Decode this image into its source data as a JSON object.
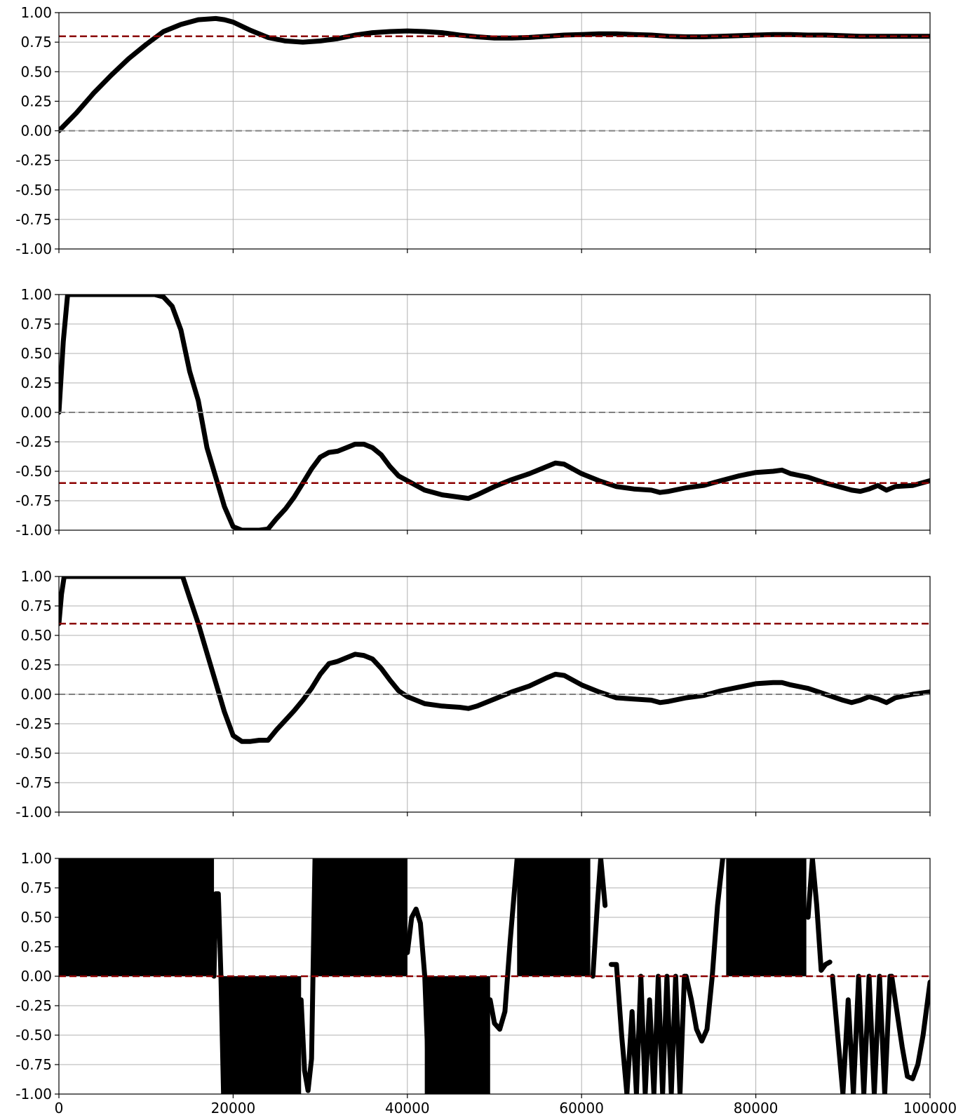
{
  "colors": {
    "series": "#000000",
    "target_line": "#8b0000",
    "zero_line": "#808080",
    "grid": "#b0b0b0"
  },
  "chart_data": [
    {
      "type": "line",
      "xlim": [
        0,
        100000
      ],
      "ylim": [
        -1.0,
        1.0
      ],
      "x_ticks": [
        "0",
        "20000",
        "40000",
        "60000",
        "80000",
        "100000"
      ],
      "x_tick_labels_shown": false,
      "y_ticks": [
        "1.00",
        "0.75",
        "0.50",
        "0.25",
        "0.00",
        "-0.25",
        "-0.50",
        "-0.75",
        "-1.00"
      ],
      "grid": true,
      "hlines": [
        {
          "y": 0.8,
          "style": "dashed",
          "color": "#8b0000"
        },
        {
          "y": 0.0,
          "style": "dashed",
          "color": "#808080"
        }
      ],
      "series": [
        {
          "x": [
            0,
            2000,
            4000,
            6000,
            8000,
            10000,
            12000,
            14000,
            16000,
            18000,
            19000,
            20000,
            22000,
            24000,
            26000,
            28000,
            30000,
            32000,
            34000,
            36000,
            38000,
            40000,
            42000,
            44000,
            46000,
            48000,
            50000,
            52000,
            54000,
            56000,
            58000,
            60000,
            62000,
            64000,
            66000,
            68000,
            70000,
            72000,
            74000,
            76000,
            78000,
            80000,
            82000,
            84000,
            86000,
            88000,
            90000,
            92000,
            94000,
            96000,
            98000,
            100000
          ],
          "y": [
            0.0,
            0.15,
            0.32,
            0.47,
            0.61,
            0.73,
            0.84,
            0.9,
            0.94,
            0.95,
            0.94,
            0.92,
            0.85,
            0.79,
            0.76,
            0.75,
            0.76,
            0.78,
            0.81,
            0.83,
            0.84,
            0.845,
            0.84,
            0.83,
            0.81,
            0.795,
            0.785,
            0.785,
            0.79,
            0.8,
            0.81,
            0.815,
            0.82,
            0.82,
            0.815,
            0.81,
            0.8,
            0.795,
            0.795,
            0.8,
            0.805,
            0.81,
            0.815,
            0.815,
            0.81,
            0.81,
            0.805,
            0.8,
            0.8,
            0.8,
            0.8,
            0.8
          ]
        }
      ]
    },
    {
      "type": "line",
      "xlim": [
        0,
        100000
      ],
      "ylim": [
        -1.0,
        1.0
      ],
      "x_ticks": [
        "0",
        "20000",
        "40000",
        "60000",
        "80000",
        "100000"
      ],
      "x_tick_labels_shown": false,
      "y_ticks": [
        "1.00",
        "0.75",
        "0.50",
        "0.25",
        "0.00",
        "-0.25",
        "-0.50",
        "-0.75",
        "-1.00"
      ],
      "grid": true,
      "hlines": [
        {
          "y": -0.6,
          "style": "dashed",
          "color": "#8b0000"
        },
        {
          "y": 0.0,
          "style": "dashed",
          "color": "#808080"
        }
      ],
      "series": [
        {
          "x": [
            0,
            500,
            1000,
            2000,
            4000,
            8000,
            11000,
            12000,
            13000,
            14000,
            15000,
            16000,
            17000,
            18000,
            19000,
            20000,
            21000,
            22000,
            23000,
            24000,
            25000,
            26000,
            27000,
            28000,
            29000,
            30000,
            31000,
            32000,
            33000,
            34000,
            35000,
            36000,
            37000,
            38000,
            39000,
            40000,
            42000,
            44000,
            46000,
            47000,
            48000,
            50000,
            52000,
            54000,
            56000,
            57000,
            58000,
            60000,
            62000,
            64000,
            66000,
            68000,
            69000,
            70000,
            72000,
            74000,
            76000,
            78000,
            80000,
            82000,
            83000,
            84000,
            86000,
            88000,
            90000,
            91000,
            92000,
            93000,
            94000,
            95000,
            96000,
            98000,
            100000
          ],
          "y": [
            0.0,
            0.6,
            1.0,
            1.0,
            1.0,
            1.0,
            1.0,
            0.98,
            0.9,
            0.7,
            0.35,
            0.1,
            -0.3,
            -0.55,
            -0.8,
            -0.97,
            -1.0,
            -1.0,
            -1.0,
            -0.99,
            -0.9,
            -0.82,
            -0.72,
            -0.6,
            -0.48,
            -0.38,
            -0.34,
            -0.33,
            -0.3,
            -0.27,
            -0.27,
            -0.3,
            -0.36,
            -0.46,
            -0.54,
            -0.58,
            -0.66,
            -0.7,
            -0.72,
            -0.73,
            -0.7,
            -0.63,
            -0.57,
            -0.52,
            -0.46,
            -0.43,
            -0.44,
            -0.52,
            -0.58,
            -0.63,
            -0.65,
            -0.66,
            -0.68,
            -0.67,
            -0.64,
            -0.62,
            -0.58,
            -0.54,
            -0.51,
            -0.5,
            -0.49,
            -0.52,
            -0.55,
            -0.6,
            -0.64,
            -0.66,
            -0.67,
            -0.65,
            -0.62,
            -0.66,
            -0.63,
            -0.62,
            -0.58
          ]
        }
      ]
    },
    {
      "type": "line",
      "xlim": [
        0,
        100000
      ],
      "ylim": [
        -1.0,
        1.0
      ],
      "x_ticks": [
        "0",
        "20000",
        "40000",
        "60000",
        "80000",
        "100000"
      ],
      "x_tick_labels_shown": false,
      "y_ticks": [
        "1.00",
        "0.75",
        "0.50",
        "0.25",
        "0.00",
        "-0.25",
        "-0.50",
        "-0.75",
        "-1.00"
      ],
      "grid": true,
      "hlines": [
        {
          "y": 0.6,
          "style": "dashed",
          "color": "#8b0000"
        },
        {
          "y": 0.0,
          "style": "dashed",
          "color": "#808080"
        }
      ],
      "series": [
        {
          "x": [
            0,
            300,
            600,
            14200,
            15000,
            16000,
            17000,
            18000,
            19000,
            20000,
            21000,
            22000,
            23000,
            24000,
            25000,
            26000,
            27000,
            28000,
            29000,
            30000,
            31000,
            32000,
            33000,
            34000,
            35000,
            36000,
            37000,
            38000,
            39000,
            40000,
            42000,
            44000,
            46000,
            47000,
            48000,
            50000,
            52000,
            54000,
            56000,
            57000,
            58000,
            60000,
            62000,
            64000,
            66000,
            68000,
            69000,
            70000,
            72000,
            74000,
            76000,
            78000,
            80000,
            82000,
            83000,
            84000,
            86000,
            88000,
            90000,
            91000,
            92000,
            93000,
            94000,
            95000,
            96000,
            98000,
            100000
          ],
          "y": [
            0.6,
            0.85,
            1.0,
            1.0,
            0.82,
            0.6,
            0.35,
            0.1,
            -0.15,
            -0.35,
            -0.4,
            -0.4,
            -0.39,
            -0.39,
            -0.3,
            -0.22,
            -0.14,
            -0.05,
            0.05,
            0.17,
            0.26,
            0.28,
            0.31,
            0.34,
            0.33,
            0.3,
            0.22,
            0.12,
            0.03,
            -0.02,
            -0.08,
            -0.1,
            -0.11,
            -0.12,
            -0.1,
            -0.04,
            0.02,
            0.07,
            0.14,
            0.17,
            0.16,
            0.08,
            0.02,
            -0.03,
            -0.04,
            -0.05,
            -0.07,
            -0.06,
            -0.03,
            -0.01,
            0.03,
            0.06,
            0.09,
            0.1,
            0.1,
            0.08,
            0.05,
            0.0,
            -0.05,
            -0.07,
            -0.05,
            -0.02,
            -0.04,
            -0.07,
            -0.03,
            0.0,
            0.02
          ]
        }
      ]
    },
    {
      "type": "line",
      "xlim": [
        0,
        100000
      ],
      "ylim": [
        -1.0,
        1.0
      ],
      "x_ticks": [
        "0",
        "20000",
        "40000",
        "60000",
        "80000",
        "100000"
      ],
      "x_tick_labels_shown": true,
      "y_ticks": [
        "1.00",
        "0.75",
        "0.50",
        "0.25",
        "0.00",
        "-0.25",
        "-0.50",
        "-0.75",
        "-1.00"
      ],
      "grid": true,
      "hlines": [
        {
          "y": 0.0,
          "style": "dashed",
          "color": "#8b0000"
        }
      ],
      "filled_bands": [
        {
          "x": [
            0,
            17800
          ],
          "y": [
            0.0,
            1.0
          ]
        },
        {
          "x": [
            18800,
            27800
          ],
          "y": [
            -1.0,
            0.0
          ]
        },
        {
          "x": [
            29300,
            40000
          ],
          "y": [
            0.0,
            1.0
          ]
        },
        {
          "x": [
            42000,
            49500
          ],
          "y": [
            -1.0,
            0.0
          ]
        },
        {
          "x": [
            52600,
            61000
          ],
          "y": [
            0.0,
            1.0
          ]
        },
        {
          "x": [
            76600,
            85800
          ],
          "y": [
            0.0,
            1.0
          ]
        }
      ],
      "series": [
        {
          "x": [
            17800,
            18000,
            18300,
            18600,
            18900
          ],
          "y": [
            0.0,
            0.7,
            0.7,
            0.0,
            -1.0
          ]
        },
        {
          "x": [
            27800,
            28200,
            28600,
            29000,
            29400
          ],
          "y": [
            -0.2,
            -0.8,
            -0.97,
            -0.7,
            1.0
          ]
        },
        {
          "x": [
            40000,
            40500,
            41000,
            41500,
            42000,
            42500
          ],
          "y": [
            0.2,
            0.5,
            0.57,
            0.45,
            0.0,
            -1.0
          ]
        },
        {
          "x": [
            49500,
            50000,
            50600,
            51200,
            51800,
            52600
          ],
          "y": [
            -0.2,
            -0.4,
            -0.45,
            -0.3,
            0.3,
            1.0
          ]
        },
        {
          "x": [
            61300,
            61800,
            62200,
            62700
          ],
          "y": [
            0.0,
            0.6,
            1.0,
            0.6
          ]
        },
        {
          "x": [
            63400,
            64000,
            64600,
            65200,
            65800,
            66300,
            66800,
            67300,
            67800,
            68300,
            68800,
            69300,
            69800,
            70300,
            70800,
            71300,
            71800
          ],
          "y": [
            0.1,
            0.1,
            -0.5,
            -1.0,
            -0.3,
            -1.0,
            0.0,
            -1.0,
            -0.2,
            -1.0,
            0.0,
            -1.0,
            0.0,
            -1.0,
            0.0,
            -1.0,
            0.0
          ]
        },
        {
          "x": [
            72000,
            72600,
            73200,
            73800,
            74400,
            75000,
            75600,
            76200
          ],
          "y": [
            0.0,
            -0.2,
            -0.45,
            -0.55,
            -0.45,
            0.0,
            0.6,
            1.0
          ]
        },
        {
          "x": [
            86000,
            86500,
            87000,
            87500,
            88000,
            88500
          ],
          "y": [
            0.5,
            1.0,
            0.6,
            0.05,
            0.1,
            0.12
          ]
        },
        {
          "x": [
            88800,
            89400,
            90000,
            90600,
            91200,
            91800,
            92400,
            93000,
            93600,
            94200,
            94800,
            95400
          ],
          "y": [
            0.0,
            -0.5,
            -1.0,
            -0.2,
            -1.0,
            0.0,
            -1.0,
            0.0,
            -1.0,
            0.0,
            -1.0,
            0.0
          ]
        },
        {
          "x": [
            95600,
            96200,
            96800,
            97400,
            98000,
            98600,
            99200,
            100000
          ],
          "y": [
            0.0,
            -0.3,
            -0.6,
            -0.85,
            -0.87,
            -0.75,
            -0.5,
            -0.05
          ]
        }
      ]
    }
  ]
}
